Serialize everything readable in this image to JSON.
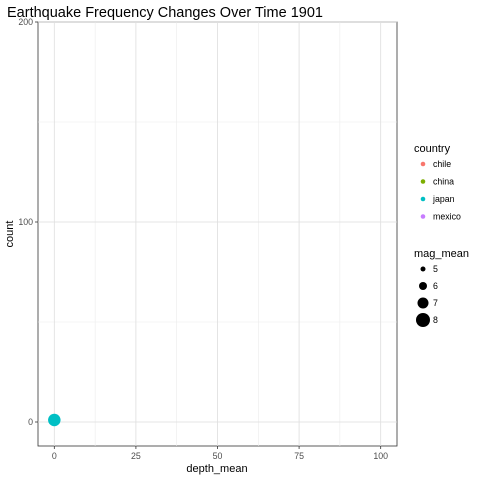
{
  "chart_data": {
    "type": "scatter",
    "title": "Earthquake Frequency Changes Over Time 1901",
    "xlabel": "depth_mean",
    "ylabel": "count",
    "xlim": [
      -5,
      105
    ],
    "ylim": [
      -12,
      200
    ],
    "x_ticks": [
      0,
      25,
      50,
      75,
      100
    ],
    "y_ticks": [
      0,
      100,
      200
    ],
    "x_tick_labels": [
      "0",
      "25",
      "50",
      "75",
      "100"
    ],
    "y_tick_labels": [
      "0",
      "100",
      "200"
    ],
    "grid": true,
    "legend_position": "right",
    "series": [
      {
        "name": "japan",
        "color": "#00BFC4",
        "points": [
          {
            "x": 0,
            "y": 1,
            "mag_mean": 7.5
          }
        ]
      }
    ],
    "color_legend": {
      "title": "country",
      "entries": [
        {
          "label": "chile",
          "color": "#F8766D"
        },
        {
          "label": "china",
          "color": "#7CAE00"
        },
        {
          "label": "japan",
          "color": "#00BFC4"
        },
        {
          "label": "mexico",
          "color": "#C77CFF"
        }
      ]
    },
    "size_legend": {
      "title": "mag_mean",
      "entries": [
        {
          "label": "5",
          "value": 5
        },
        {
          "label": "6",
          "value": 6
        },
        {
          "label": "7",
          "value": 7
        },
        {
          "label": "8",
          "value": 8
        }
      ]
    }
  }
}
